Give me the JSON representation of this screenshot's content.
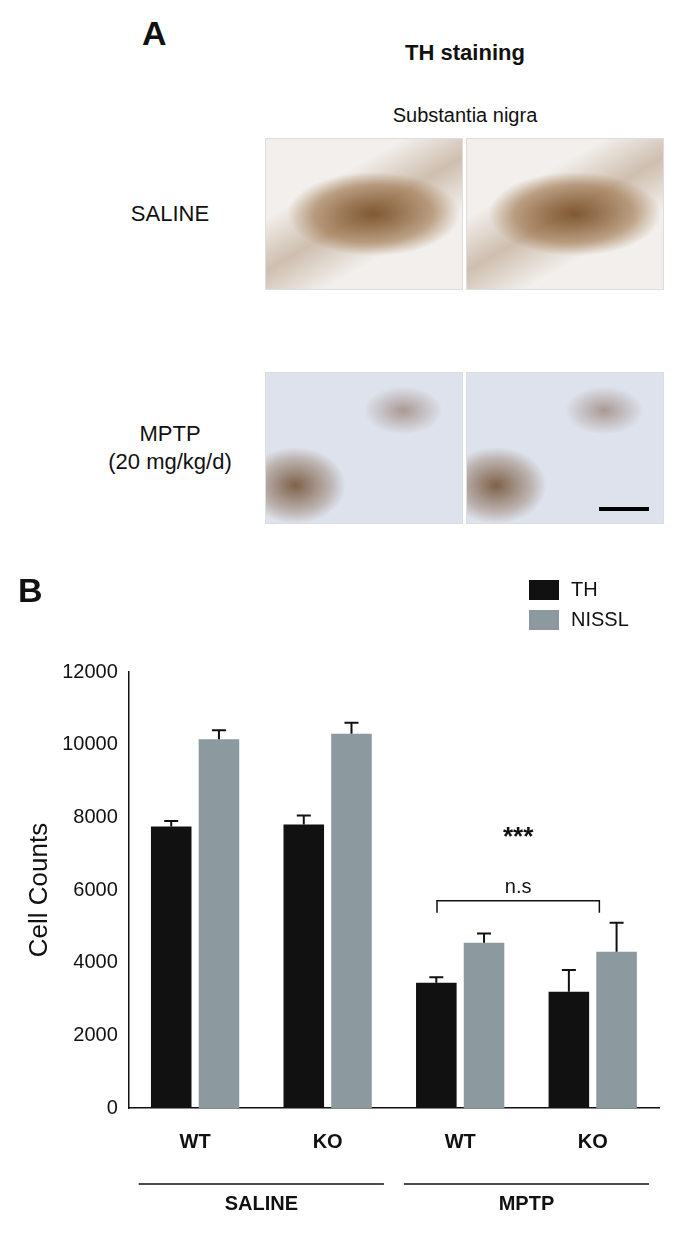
{
  "panel_a": {
    "label": "A",
    "title": "TH staining",
    "subtitle": "Substantia nigra",
    "rows": [
      {
        "label": [
          "SALINE"
        ]
      },
      {
        "label": [
          "MPTP",
          "(20 mg/kg/d)"
        ]
      }
    ]
  },
  "chart_data": {
    "panel_label": "B",
    "type": "bar",
    "y_label": "Cell Counts",
    "categories": [
      "WT",
      "KO",
      "WT",
      "KO"
    ],
    "groups": [
      "SALINE",
      "SALINE",
      "MPTP",
      "MPTP"
    ],
    "series": [
      {
        "name": "TH",
        "color": "#111111",
        "values": [
          7750,
          7800,
          3450,
          3200
        ],
        "errors": [
          150,
          250,
          150,
          600
        ]
      },
      {
        "name": "NISSL",
        "color": "#8c999f",
        "values": [
          10150,
          10300,
          4550,
          4300
        ],
        "errors": [
          250,
          300,
          250,
          800
        ]
      }
    ],
    "ylim": [
      0,
      12000
    ],
    "yticks": [
      0,
      2000,
      4000,
      6000,
      8000,
      10000,
      12000
    ],
    "grid": false,
    "legend": "top-right",
    "annotations": [
      "***",
      "n.s"
    ]
  }
}
